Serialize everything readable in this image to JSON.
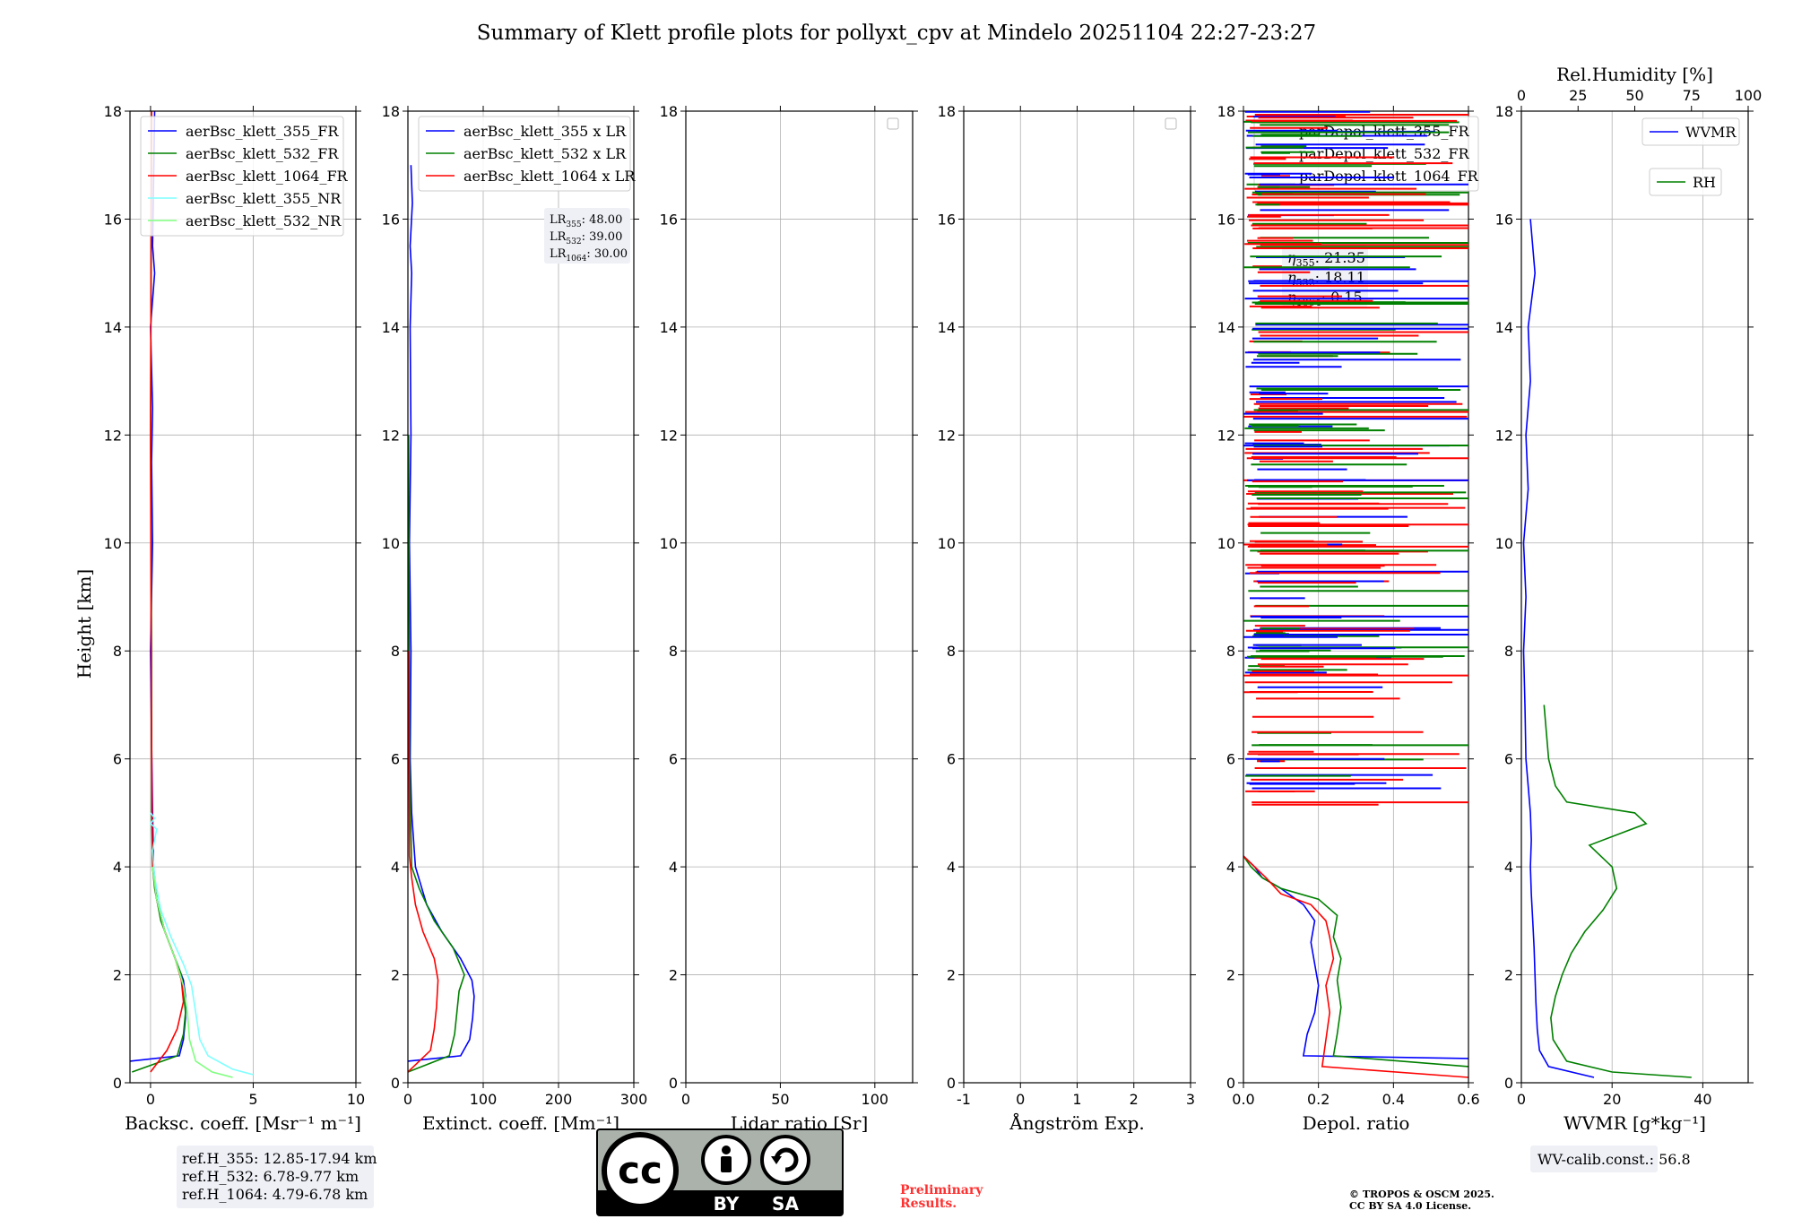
{
  "figure": {
    "title": "Summary of Klett profile plots for pollyxt_cpv at Mindelo 20251104 22:27-23:27",
    "ylabel": "Height [km]",
    "preliminary": "Preliminary Results.",
    "preliminary_line1": "Preliminary",
    "preliminary_line2": "Results.",
    "copyright_line1": "© TROPOS & OSCM 2025.",
    "copyright_line2": "CC BY SA 4.0 License.",
    "license_badge": {
      "by": "BY",
      "sa": "SA",
      "cc": "cc"
    }
  },
  "colors": {
    "blue": "#0000ff",
    "green": "#008000",
    "red": "#ff0000",
    "cyan": "#7fffff",
    "lightgreen": "#7fff7f",
    "grid": "#b0b0b0"
  },
  "chart_data": [
    {
      "id": "backscatter",
      "type": "line",
      "xlabel": "Backsc. coeff. [Msr⁻¹ m⁻¹]",
      "ylabel": "Height [km]",
      "xlim": [
        -1,
        10
      ],
      "ylim": [
        0,
        18
      ],
      "xticks": [
        0,
        5,
        10
      ],
      "yticks": [
        0,
        2,
        4,
        6,
        8,
        10,
        12,
        14,
        16,
        18
      ],
      "grid": true,
      "legend": "top-left",
      "series": [
        {
          "name": "aerBsc_klett_355_FR",
          "color": "#0000ff",
          "x": [
            -1.0,
            1.4,
            1.6,
            1.7,
            1.7,
            1.6,
            1.2,
            0.7,
            0.3,
            0.15,
            0.1,
            0.05,
            0.0,
            0.1,
            0.05,
            0.1,
            0.0,
            0.2,
            0.1,
            0.2
          ],
          "y": [
            0.4,
            0.5,
            0.8,
            1.2,
            1.6,
            1.9,
            2.3,
            2.8,
            3.4,
            4.0,
            5.0,
            6.3,
            8.0,
            10.0,
            11.5,
            12.5,
            14.0,
            15.0,
            15.5,
            18.0
          ]
        },
        {
          "name": "aerBsc_klett_532_FR",
          "color": "#008000",
          "x": [
            -0.9,
            1.3,
            1.6,
            1.7,
            1.6,
            1.5,
            1.0,
            0.5,
            0.2,
            0.1,
            0.05,
            0.05,
            0.0,
            0.05
          ],
          "y": [
            0.2,
            0.5,
            0.9,
            1.3,
            1.7,
            2.0,
            2.5,
            3.0,
            3.6,
            4.0,
            5.0,
            8.0,
            12.0,
            18.0
          ]
        },
        {
          "name": "aerBsc_klett_1064_FR",
          "color": "#ff0000",
          "x": [
            0.0,
            0.8,
            1.3,
            1.6,
            1.5,
            1.2,
            0.7,
            0.3,
            0.1,
            0.05,
            0.0,
            0.05
          ],
          "y": [
            0.2,
            0.6,
            1.0,
            1.5,
            1.9,
            2.3,
            2.8,
            3.4,
            4.0,
            6.0,
            12.0,
            18.0
          ]
        },
        {
          "name": "aerBsc_klett_355_NR",
          "color": "#7fffff",
          "x": [
            5.0,
            4.0,
            2.8,
            2.4,
            2.2,
            2.0,
            1.6,
            1.0,
            0.5,
            0.2,
            0.1,
            0.3,
            0.0,
            0.2,
            0.0
          ],
          "y": [
            0.15,
            0.25,
            0.5,
            0.8,
            1.3,
            1.8,
            2.2,
            2.7,
            3.2,
            3.8,
            4.3,
            4.7,
            4.8,
            4.9,
            5.0
          ]
        },
        {
          "name": "aerBsc_klett_532_NR",
          "color": "#7fff7f",
          "x": [
            4.0,
            3.0,
            2.2,
            1.9,
            1.8,
            1.6,
            1.2,
            0.7,
            0.3,
            0.1
          ],
          "y": [
            0.1,
            0.2,
            0.4,
            0.8,
            1.3,
            1.8,
            2.3,
            2.8,
            3.4,
            4.0
          ]
        }
      ],
      "annotation": [
        "ref.H_355: 12.85-17.94 km",
        "ref.H_532: 6.78-9.77 km",
        "ref.H_1064: 4.79-6.78 km"
      ]
    },
    {
      "id": "extinction",
      "type": "line",
      "xlabel": "Extinct. coeff. [Mm⁻¹]",
      "xlim": [
        0,
        300
      ],
      "ylim": [
        0,
        18
      ],
      "xticks": [
        0,
        100,
        200,
        300
      ],
      "yticks": [
        0,
        2,
        4,
        6,
        8,
        10,
        12,
        14,
        16,
        18
      ],
      "grid": true,
      "legend": "top-left",
      "series": [
        {
          "name": "aerBsc_klett_355 x LR",
          "color": "#0000ff",
          "x": [
            0,
            70,
            82,
            86,
            88,
            85,
            70,
            45,
            25,
            10,
            5,
            3,
            4,
            2,
            4,
            3,
            5,
            3,
            6,
            4
          ],
          "y": [
            0.4,
            0.5,
            0.8,
            1.2,
            1.6,
            1.9,
            2.3,
            2.8,
            3.3,
            4.0,
            5.0,
            6.0,
            8.0,
            10.0,
            12.0,
            14.0,
            15.0,
            15.5,
            16.3,
            17.0
          ]
        },
        {
          "name": "aerBsc_klett_532 x LR",
          "color": "#008000",
          "x": [
            0,
            55,
            62,
            65,
            68,
            75,
            60,
            35,
            15,
            5,
            2,
            1
          ],
          "y": [
            0.2,
            0.5,
            0.9,
            1.3,
            1.7,
            2.0,
            2.5,
            3.0,
            3.6,
            4.0,
            6.0,
            12.0
          ]
        },
        {
          "name": "aerBsc_klett_1064 x LR",
          "color": "#ff0000",
          "x": [
            0,
            30,
            35,
            38,
            40,
            35,
            20,
            10,
            5,
            2,
            1
          ],
          "y": [
            0.2,
            0.6,
            1.0,
            1.4,
            1.9,
            2.3,
            2.8,
            3.3,
            3.8,
            4.2,
            8.0
          ]
        }
      ],
      "annotation": [
        "LR355: 48.00",
        "LR532: 39.00",
        "LR1064: 30.00"
      ],
      "lr_values": [
        {
          "label": "LR",
          "sub": "355",
          "value": ": 48.00"
        },
        {
          "label": "LR",
          "sub": "532",
          "value": ": 39.00"
        },
        {
          "label": "LR",
          "sub": "1064",
          "value": ": 30.00"
        }
      ]
    },
    {
      "id": "lidar_ratio",
      "type": "line",
      "xlabel": "Lidar ratio [Sr]",
      "xlim": [
        0,
        120
      ],
      "ylim": [
        0,
        18
      ],
      "xticks": [
        0,
        50,
        100
      ],
      "yticks": [
        0,
        2,
        4,
        6,
        8,
        10,
        12,
        14,
        16,
        18
      ],
      "grid": true,
      "legend": "top-right",
      "series": []
    },
    {
      "id": "angstrom",
      "type": "line",
      "xlabel": "Ångström Exp.",
      "xlim": [
        -1,
        3
      ],
      "ylim": [
        0,
        18
      ],
      "xticks": [
        -1,
        0,
        1,
        2,
        3
      ],
      "yticks": [
        0,
        2,
        4,
        6,
        8,
        10,
        12,
        14,
        16,
        18
      ],
      "grid": true,
      "legend": "top-right",
      "series": []
    },
    {
      "id": "depol",
      "type": "line",
      "xlabel": "Depol. ratio",
      "xlim": [
        0,
        0.6
      ],
      "ylim": [
        0,
        18
      ],
      "xticks": [
        0.0,
        0.2,
        0.4,
        0.6
      ],
      "xticklabels": [
        "0.0",
        "0.2",
        "0.4",
        "0.6"
      ],
      "yticks": [
        0,
        2,
        4,
        6,
        8,
        10,
        12,
        14,
        16,
        18
      ],
      "grid": true,
      "legend": "top-left",
      "series": [
        {
          "name": "parDepol_klett_355_FR",
          "color": "#0000ff",
          "x": [
            0.6,
            0.16,
            0.17,
            0.19,
            0.2,
            0.19,
            0.18,
            0.19,
            0.16,
            0.1,
            0.05,
            0.03,
            0.0
          ],
          "y": [
            0.45,
            0.5,
            0.9,
            1.3,
            1.8,
            2.2,
            2.6,
            3.0,
            3.3,
            3.6,
            3.8,
            4.0,
            4.2
          ]
        },
        {
          "name": "parDepol_klett_532_FR",
          "color": "#008000",
          "x": [
            0.6,
            0.24,
            0.25,
            0.26,
            0.25,
            0.26,
            0.24,
            0.25,
            0.2,
            0.1,
            0.05,
            0.02,
            0.0
          ],
          "y": [
            0.3,
            0.5,
            0.9,
            1.4,
            1.9,
            2.3,
            2.7,
            3.1,
            3.4,
            3.6,
            3.8,
            4.0,
            4.2
          ]
        },
        {
          "name": "parDepol_klett_1064_FR",
          "color": "#ff0000",
          "x": [
            0.6,
            0.21,
            0.22,
            0.23,
            0.22,
            0.24,
            0.23,
            0.22,
            0.18,
            0.1,
            0.06,
            0.03,
            0.0
          ],
          "y": [
            0.1,
            0.3,
            0.8,
            1.3,
            1.8,
            2.3,
            2.7,
            3.0,
            3.3,
            3.5,
            3.8,
            4.0,
            4.2
          ]
        }
      ],
      "annotation": [
        "η355: 21.35",
        "η532: 18.11",
        "η1064: 0.15"
      ],
      "eta_values": [
        {
          "label": "η",
          "sub": "355",
          "value": ": 21.35"
        },
        {
          "label": "η",
          "sub": "532",
          "value": ": 18.11"
        },
        {
          "label": "η",
          "sub": "1064",
          "value": ": 0.15"
        }
      ]
    },
    {
      "id": "wvmr_rh",
      "type": "line",
      "xlabel": "WVMR [g*kg⁻¹]",
      "xlim": [
        0,
        50
      ],
      "ylim": [
        0,
        18
      ],
      "xticks": [
        0,
        20,
        40
      ],
      "yticks": [
        0,
        2,
        4,
        6,
        8,
        10,
        12,
        14,
        16,
        18
      ],
      "top_xlabel": "Rel.Humidity [%]",
      "top_xlim": [
        0,
        100
      ],
      "top_xticks": [
        0,
        25,
        50,
        75,
        100
      ],
      "grid": true,
      "legend": "top-right",
      "series": [
        {
          "name": "WVMR",
          "color": "#0000ff",
          "axis": "bottom",
          "x": [
            16,
            6,
            4,
            3.5,
            3.2,
            3,
            2.8,
            2.5,
            2.2,
            2,
            2.2,
            2,
            1.5,
            1,
            0.8,
            0.5,
            1,
            0.5,
            1.5,
            1,
            2,
            1.5,
            3,
            2
          ],
          "y": [
            0.1,
            0.3,
            0.6,
            1,
            1.5,
            2,
            2.5,
            3,
            3.5,
            4,
            4.5,
            5,
            5.5,
            6,
            7,
            8,
            9,
            10,
            11,
            12,
            13,
            14,
            15,
            16
          ]
        },
        {
          "name": "RH",
          "color": "#008000",
          "axis": "top",
          "x": [
            75,
            40,
            20,
            14,
            13,
            15,
            18,
            22,
            28,
            36,
            42,
            40,
            30,
            55,
            50,
            20,
            15,
            12,
            10
          ],
          "y": [
            0.1,
            0.2,
            0.4,
            0.8,
            1.2,
            1.6,
            2.0,
            2.4,
            2.8,
            3.2,
            3.6,
            4.0,
            4.4,
            4.8,
            5.0,
            5.2,
            5.5,
            6.0,
            7.0
          ]
        }
      ],
      "annotation": [
        "WV-calib.const.: 56.8"
      ]
    }
  ]
}
